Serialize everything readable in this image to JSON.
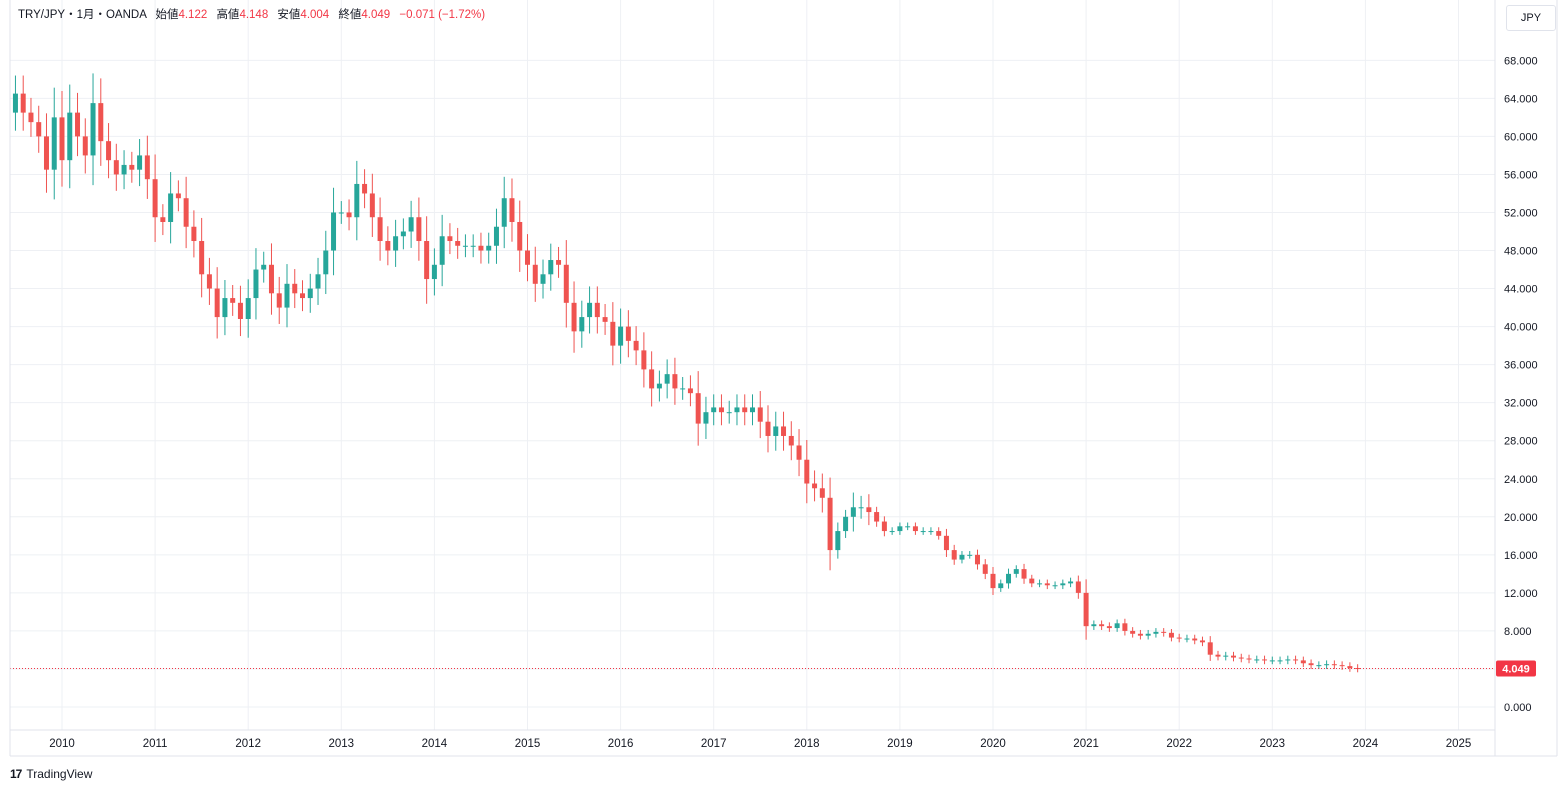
{
  "header": {
    "symbol": "TRY/JPY・1月・OANDA",
    "open_label": "始値",
    "open": "4.122",
    "high_label": "高値",
    "high": "4.148",
    "low_label": "安値",
    "low": "4.004",
    "close_label": "終値",
    "close": "4.049",
    "change": "−0.071 (−1.72%)"
  },
  "currency": "JPY",
  "price_tag": "4.049",
  "branding": {
    "logo_text": "TradingView",
    "logo_icon": "tradingview-logo-icon"
  },
  "colors": {
    "up": "#26A69A",
    "down": "#EF5350",
    "grid": "#EEF0F4",
    "last": "#F23645"
  },
  "chart_data": {
    "type": "candlestick",
    "title": "TRY/JPY・1月・OANDA",
    "interval": "monthly",
    "ylabel": "JPY",
    "ylim": [
      0,
      72
    ],
    "y_ticks": [
      "0.000",
      "4.000",
      "8.000",
      "12.000",
      "16.000",
      "20.000",
      "24.000",
      "28.000",
      "32.000",
      "36.000",
      "40.000",
      "44.000",
      "48.000",
      "52.000",
      "56.000",
      "60.000",
      "64.000",
      "68.000"
    ],
    "x_ticks": [
      "2010",
      "2011",
      "2012",
      "2013",
      "2014",
      "2015",
      "2016",
      "2017",
      "2018",
      "2019",
      "2020",
      "2021",
      "2022",
      "2023",
      "2024",
      "2025"
    ],
    "last_price": 4.049,
    "grid": true,
    "candles_note": "monthly OHLC, open/close alternation estimated from chart; first candle Jul 2009",
    "start": "2009-07",
    "close": [
      64.5,
      62.5,
      61.5,
      60.0,
      56.5,
      62.0,
      57.5,
      62.5,
      60.0,
      58.0,
      63.5,
      59.5,
      57.5,
      56.0,
      57.0,
      56.5,
      58.0,
      55.5,
      51.5,
      51.0,
      54.0,
      53.5,
      50.5,
      49.0,
      45.5,
      44.0,
      41.0,
      43.0,
      42.5,
      40.8,
      43.0,
      46.0,
      46.5,
      43.5,
      42.0,
      44.5,
      43.5,
      43.0,
      44.0,
      45.5,
      48.0,
      52.0,
      52.0,
      51.5,
      55.0,
      54.0,
      51.5,
      49.0,
      48.0,
      49.5,
      50.0,
      51.5,
      49.0,
      45.0,
      46.5,
      49.5,
      49.0,
      48.5,
      48.5,
      48.5,
      48.0,
      48.5,
      50.5,
      53.5,
      51.0,
      48.0,
      46.5,
      44.5,
      45.5,
      47.0,
      46.5,
      42.5,
      39.5,
      41.0,
      42.5,
      41.0,
      40.5,
      38.0,
      40.0,
      38.5,
      37.5,
      35.5,
      33.5,
      34.0,
      35.0,
      33.5,
      33.5,
      33.0,
      29.8,
      31.0,
      31.5,
      31.0,
      31.0,
      31.5,
      31.0,
      31.5,
      30.0,
      28.5,
      29.5,
      28.5,
      27.5,
      26.0,
      23.5,
      23.0,
      22.0,
      16.5,
      18.5,
      20.0,
      21.0,
      21.0,
      20.5,
      19.5,
      18.5,
      18.5,
      19.0,
      19.0,
      18.5,
      18.5,
      18.5,
      18.0,
      16.5,
      15.5,
      16.0,
      16.0,
      15.0,
      14.0,
      12.5,
      13.0,
      14.0,
      14.5,
      13.5,
      13.0,
      13.0,
      12.8,
      12.8,
      13.0,
      13.2,
      12.0,
      8.5,
      8.7,
      8.5,
      8.3,
      8.8,
      8.0,
      7.7,
      7.5,
      7.7,
      7.9,
      7.8,
      7.3,
      7.2,
      7.2,
      7.0,
      6.8,
      5.5,
      5.3,
      5.4,
      5.2,
      5.1,
      5.0,
      5.0,
      4.9,
      4.9,
      4.9,
      5.0,
      4.9,
      4.6,
      4.4,
      4.4,
      4.5,
      4.4,
      4.3,
      4.1,
      4.05
    ]
  }
}
